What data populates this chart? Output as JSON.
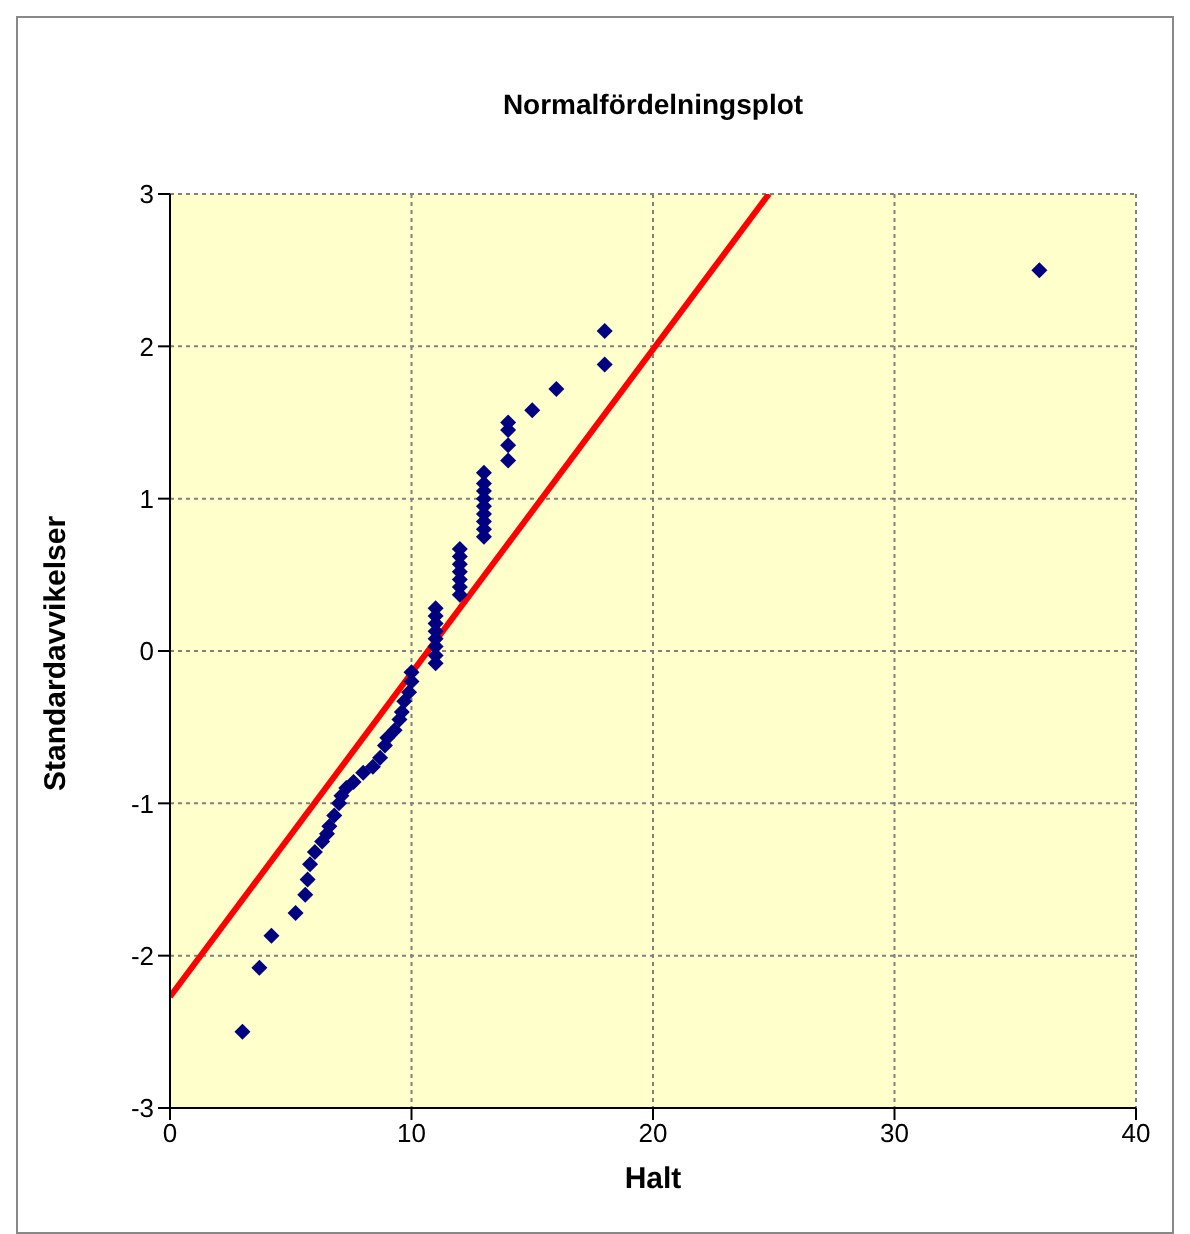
{
  "chart_data": {
    "type": "scatter",
    "title": "Normalfördelningsplot",
    "xlabel": "Halt",
    "ylabel": "Standardavvikelser",
    "xlim": [
      0,
      40
    ],
    "xticks": [
      0,
      10,
      20,
      30,
      40
    ],
    "ylim": [
      -3,
      3
    ],
    "yticks": [
      -3,
      -2,
      -1,
      0,
      1,
      2,
      3
    ],
    "grid": true,
    "series": [
      {
        "marker": "diamond",
        "color": "#000080",
        "x": [
          3,
          3.7,
          4.2,
          5.2,
          5.6,
          5.7,
          5.8,
          6,
          6.3,
          6.5,
          6.6,
          6.8,
          7,
          7.1,
          7.3,
          7.6,
          8,
          8.4,
          8.7,
          8.9,
          9,
          9.3,
          9.5,
          9.6,
          9.7,
          9.9,
          10,
          10,
          11,
          11,
          11,
          11,
          11,
          11,
          11,
          11,
          12,
          12,
          12,
          12,
          12,
          12,
          12,
          13,
          13,
          13,
          13,
          13,
          13,
          13,
          13,
          13,
          14,
          14,
          14,
          14,
          15,
          16,
          18,
          18,
          36
        ],
        "values": [
          -2.5,
          -2.08,
          -1.87,
          -1.72,
          -1.6,
          -1.5,
          -1.4,
          -1.32,
          -1.25,
          -1.2,
          -1.15,
          -1.08,
          -1.0,
          -0.95,
          -0.9,
          -0.86,
          -0.8,
          -0.76,
          -0.7,
          -0.62,
          -0.57,
          -0.52,
          -0.45,
          -0.4,
          -0.33,
          -0.27,
          -0.2,
          -0.14,
          -0.08,
          -0.03,
          0.03,
          0.08,
          0.13,
          0.18,
          0.23,
          0.28,
          0.37,
          0.42,
          0.47,
          0.52,
          0.57,
          0.62,
          0.67,
          0.75,
          0.8,
          0.85,
          0.9,
          0.95,
          1.0,
          1.05,
          1.1,
          1.17,
          1.25,
          1.35,
          1.45,
          1.5,
          1.58,
          1.72,
          1.88,
          2.1,
          2.5
        ]
      },
      {
        "type": "line",
        "color": "#ff0000",
        "x": [
          0,
          24.8
        ],
        "values": [
          -2.27,
          3
        ]
      }
    ]
  }
}
